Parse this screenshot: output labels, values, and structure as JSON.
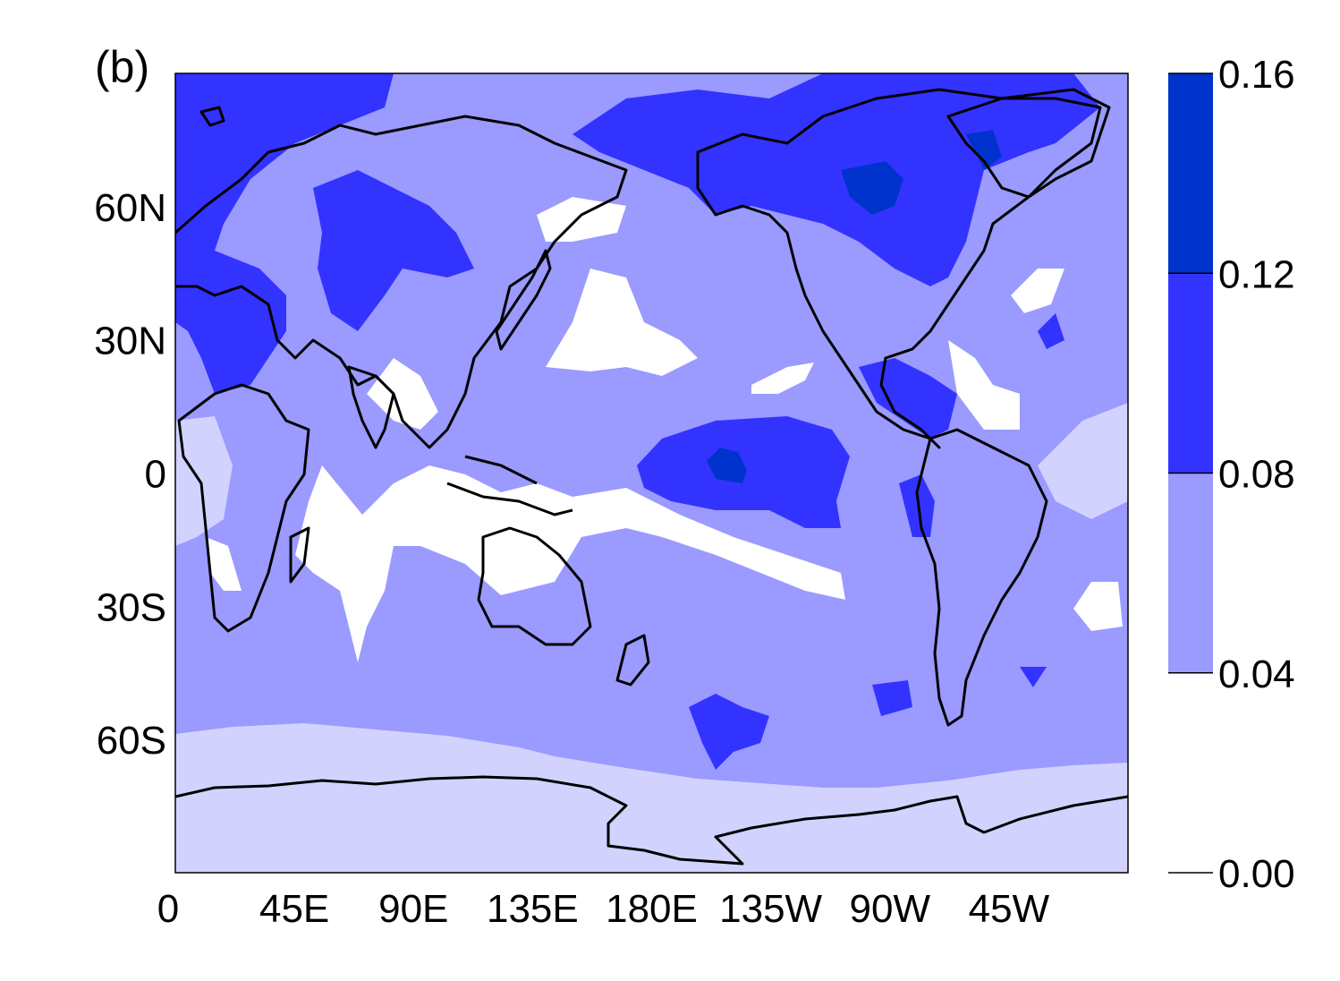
{
  "panel_label": "(b)",
  "map": {
    "projection": "equirectangular",
    "lon_range": [
      0,
      360
    ],
    "lat_range": [
      -90,
      90
    ],
    "x_tick_labels": [
      "0",
      "45E",
      "90E",
      "135E",
      "180E",
      "135W",
      "90W",
      "45W"
    ],
    "x_tick_lons": [
      0,
      45,
      90,
      135,
      180,
      225,
      270,
      315
    ],
    "y_tick_labels": [
      "60N",
      "30N",
      "0",
      "30S",
      "60S"
    ],
    "y_tick_lats": [
      60,
      30,
      0,
      -30,
      -60
    ],
    "coastline_color": "#000000"
  },
  "colorbar": {
    "tick_labels": [
      "0.00",
      "0.04",
      "0.08",
      "0.12",
      "0.16"
    ],
    "levels": [
      0.0,
      0.04,
      0.08,
      0.12,
      0.16
    ],
    "colors": [
      "#ffffff",
      "#9a9aff",
      "#3333ff",
      "#0033cc"
    ]
  },
  "chart_data": {
    "type": "heatmap",
    "title": "",
    "xlabel": "",
    "ylabel": "",
    "levels": [
      0.0,
      0.04,
      0.08,
      0.12,
      0.16
    ],
    "level_colors": [
      "#ffffff",
      "#9a9aff",
      "#3333ff",
      "#0033cc"
    ],
    "background_band": {
      "lat_min": -90,
      "lat_max": -60,
      "color": "#d2d2ff",
      "note_value_range": [
        0.02,
        0.04
      ]
    },
    "regions": [
      {
        "name": "north-atlantic-arctic-high",
        "level": 0.08,
        "lon": [
          0,
          30
        ],
        "lat": [
          70,
          90
        ]
      },
      {
        "name": "eurasia-high",
        "level": 0.08,
        "lon": [
          40,
          120
        ],
        "lat": [
          35,
          65
        ]
      },
      {
        "name": "europe-mediterranean-high",
        "level": 0.08,
        "lon": [
          0,
          60
        ],
        "lat": [
          15,
          50
        ]
      },
      {
        "name": "north-pacific-arctic-high",
        "level": 0.08,
        "lon": [
          160,
          250
        ],
        "lat": [
          60,
          80
        ]
      },
      {
        "name": "north-america-high",
        "level": 0.08,
        "lon": [
          230,
          310
        ],
        "lat": [
          40,
          80
        ]
      },
      {
        "name": "central-america-high",
        "level": 0.08,
        "lon": [
          255,
          285
        ],
        "lat": [
          5,
          20
        ]
      },
      {
        "name": "equatorial-pacific-high",
        "level": 0.08,
        "lon": [
          185,
          240
        ],
        "lat": [
          -8,
          12
        ]
      },
      {
        "name": "equatorial-pacific-max",
        "level": 0.12,
        "lon": [
          205,
          220
        ],
        "lat": [
          -2,
          6
        ]
      },
      {
        "name": "hudson-bay-max",
        "level": 0.12,
        "lon": [
          255,
          290
        ],
        "lat": [
          55,
          75
        ]
      },
      {
        "name": "southern-ocean-high",
        "level": 0.08,
        "lon": [
          205,
          230
        ],
        "lat": [
          -70,
          -55
        ]
      },
      {
        "name": "maritime-continent-low",
        "level": 0.0,
        "lon": [
          100,
          150
        ],
        "lat": [
          -20,
          -5
        ]
      },
      {
        "name": "north-pacific-low",
        "level": 0.0,
        "lon": [
          145,
          175
        ],
        "lat": [
          20,
          40
        ]
      },
      {
        "name": "south-pacific-low",
        "level": 0.0,
        "lon": [
          175,
          240
        ],
        "lat": [
          -30,
          -10
        ]
      },
      {
        "name": "indian-ocean-low",
        "level": 0.0,
        "lon": [
          50,
          80
        ],
        "lat": [
          -45,
          -5
        ]
      }
    ]
  }
}
